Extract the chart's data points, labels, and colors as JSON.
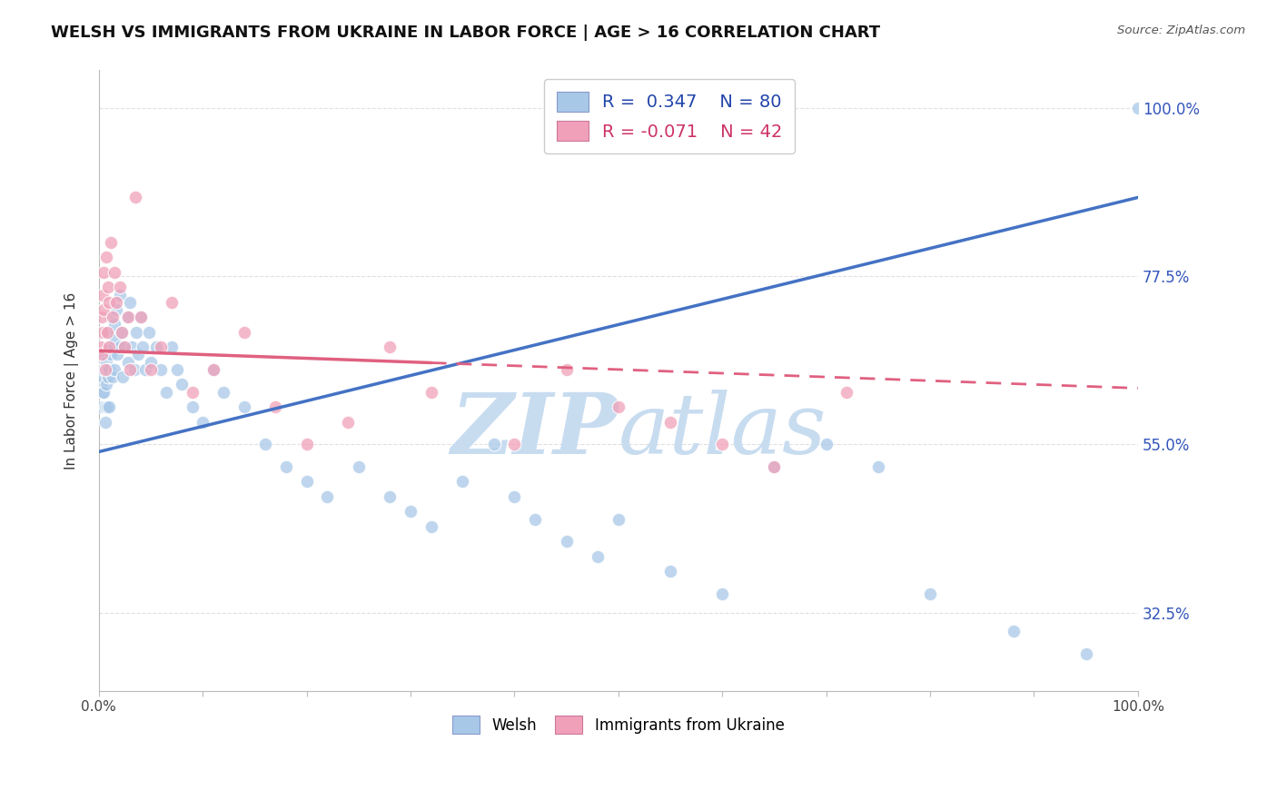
{
  "title": "WELSH VS IMMIGRANTS FROM UKRAINE IN LABOR FORCE | AGE > 16 CORRELATION CHART",
  "source_text": "Source: ZipAtlas.com",
  "ylabel": "In Labor Force | Age > 16",
  "xlim": [
    0.0,
    1.0
  ],
  "ylim": [
    0.22,
    1.05
  ],
  "ytick_labels": [
    "32.5%",
    "55.0%",
    "77.5%",
    "100.0%"
  ],
  "ytick_values": [
    0.325,
    0.55,
    0.775,
    1.0
  ],
  "welsh_R": 0.347,
  "welsh_N": 80,
  "ukraine_R": -0.071,
  "ukraine_N": 42,
  "welsh_color": "#A8C8E8",
  "ukraine_color": "#F0A0B8",
  "welsh_line_color": "#4472C4",
  "ukraine_line_color": "#E06080",
  "ukraine_line_solid_end": 0.32,
  "grid_color": "#DDDDDD",
  "background_color": "#FFFFFF",
  "watermark_color": "#C8DCF0",
  "welsh_line_x0": 0.0,
  "welsh_line_y0": 0.54,
  "welsh_line_x1": 1.0,
  "welsh_line_y1": 0.88,
  "ukraine_line_x0": 0.0,
  "ukraine_line_y0": 0.675,
  "ukraine_line_x1": 1.0,
  "ukraine_line_y1": 0.625,
  "welsh_scatter_x": [
    0.003,
    0.003,
    0.003,
    0.004,
    0.004,
    0.005,
    0.005,
    0.005,
    0.006,
    0.006,
    0.007,
    0.007,
    0.008,
    0.008,
    0.009,
    0.009,
    0.01,
    0.01,
    0.01,
    0.012,
    0.012,
    0.013,
    0.014,
    0.015,
    0.015,
    0.016,
    0.017,
    0.018,
    0.02,
    0.02,
    0.022,
    0.023,
    0.025,
    0.027,
    0.028,
    0.03,
    0.032,
    0.034,
    0.036,
    0.038,
    0.04,
    0.042,
    0.045,
    0.048,
    0.05,
    0.055,
    0.06,
    0.065,
    0.07,
    0.075,
    0.08,
    0.09,
    0.1,
    0.11,
    0.12,
    0.14,
    0.16,
    0.18,
    0.2,
    0.22,
    0.25,
    0.28,
    0.3,
    0.32,
    0.35,
    0.38,
    0.4,
    0.42,
    0.45,
    0.48,
    0.5,
    0.55,
    0.6,
    0.65,
    0.7,
    0.75,
    0.8,
    0.88,
    0.95,
    1.0
  ],
  "welsh_scatter_y": [
    0.65,
    0.63,
    0.6,
    0.64,
    0.62,
    0.67,
    0.65,
    0.62,
    0.6,
    0.58,
    0.66,
    0.63,
    0.65,
    0.6,
    0.68,
    0.64,
    0.7,
    0.65,
    0.6,
    0.72,
    0.67,
    0.64,
    0.68,
    0.71,
    0.65,
    0.69,
    0.73,
    0.67,
    0.75,
    0.68,
    0.7,
    0.64,
    0.68,
    0.72,
    0.66,
    0.74,
    0.68,
    0.65,
    0.7,
    0.67,
    0.72,
    0.68,
    0.65,
    0.7,
    0.66,
    0.68,
    0.65,
    0.62,
    0.68,
    0.65,
    0.63,
    0.6,
    0.58,
    0.65,
    0.62,
    0.6,
    0.55,
    0.52,
    0.5,
    0.48,
    0.52,
    0.48,
    0.46,
    0.44,
    0.5,
    0.55,
    0.48,
    0.45,
    0.42,
    0.4,
    0.45,
    0.38,
    0.35,
    0.52,
    0.55,
    0.52,
    0.35,
    0.3,
    0.27,
    1.0
  ],
  "ukraine_scatter_x": [
    0.002,
    0.003,
    0.003,
    0.004,
    0.004,
    0.005,
    0.005,
    0.006,
    0.007,
    0.008,
    0.009,
    0.01,
    0.01,
    0.012,
    0.013,
    0.015,
    0.017,
    0.02,
    0.022,
    0.025,
    0.028,
    0.03,
    0.035,
    0.04,
    0.05,
    0.06,
    0.07,
    0.09,
    0.11,
    0.14,
    0.17,
    0.2,
    0.24,
    0.28,
    0.32,
    0.4,
    0.45,
    0.5,
    0.55,
    0.6,
    0.65,
    0.72
  ],
  "ukraine_scatter_y": [
    0.68,
    0.72,
    0.67,
    0.75,
    0.7,
    0.78,
    0.73,
    0.65,
    0.8,
    0.7,
    0.76,
    0.74,
    0.68,
    0.82,
    0.72,
    0.78,
    0.74,
    0.76,
    0.7,
    0.68,
    0.72,
    0.65,
    0.88,
    0.72,
    0.65,
    0.68,
    0.74,
    0.62,
    0.65,
    0.7,
    0.6,
    0.55,
    0.58,
    0.68,
    0.62,
    0.55,
    0.65,
    0.6,
    0.58,
    0.55,
    0.52,
    0.62
  ]
}
